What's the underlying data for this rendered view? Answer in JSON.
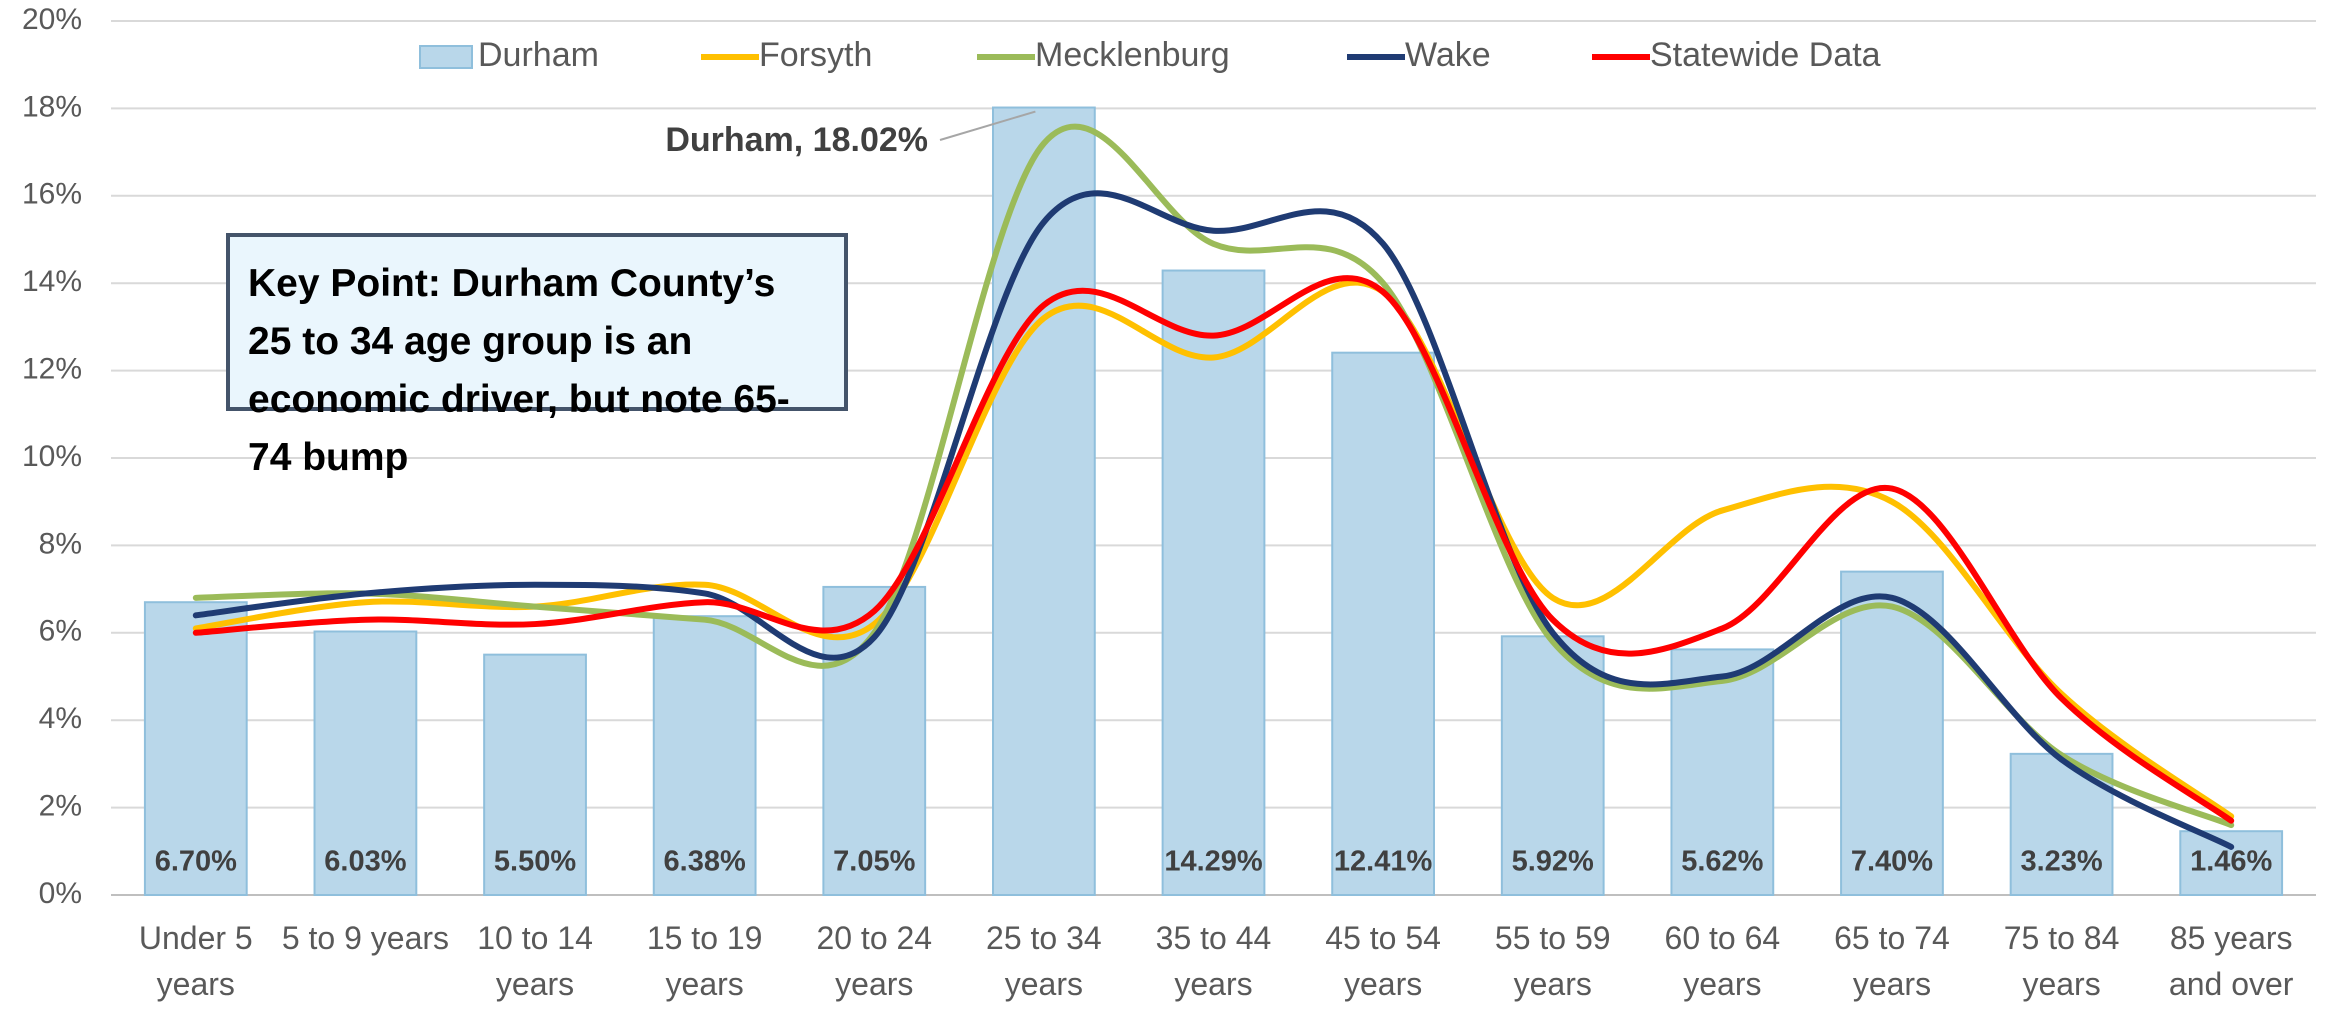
{
  "chart_data": {
    "type": "bar",
    "categories": [
      "Under 5 years",
      "5 to 9 years",
      "10 to 14 years",
      "15 to 19 years",
      "20 to 24 years",
      "25 to 34 years",
      "35 to 44 years",
      "45 to 54 years",
      "55 to 59 years",
      "60 to 64 years",
      "65 to 74 years",
      "75 to 84 years",
      "85 years and over"
    ],
    "series": [
      {
        "name": "Durham",
        "type": "bar",
        "color": "#b9d7ea",
        "values": [
          6.7,
          6.03,
          5.5,
          6.38,
          7.05,
          18.02,
          14.29,
          12.41,
          5.92,
          5.62,
          7.4,
          3.23,
          1.46
        ],
        "value_labels": [
          "6.70%",
          "6.03%",
          "5.50%",
          "6.38%",
          "7.05%",
          null,
          "14.29%",
          "12.41%",
          "5.92%",
          "5.62%",
          "7.40%",
          "3.23%",
          "1.46%"
        ]
      },
      {
        "name": "Forsyth",
        "type": "line",
        "color": "#ffc000",
        "values": [
          6.1,
          6.7,
          6.6,
          7.1,
          6.2,
          13.2,
          12.3,
          13.8,
          6.8,
          8.8,
          9.0,
          4.6,
          1.8
        ]
      },
      {
        "name": "Mecklenburg",
        "type": "line",
        "color": "#9bbb59",
        "values": [
          6.8,
          6.9,
          6.6,
          6.3,
          6.0,
          17.2,
          14.9,
          14.0,
          5.8,
          4.9,
          6.6,
          3.2,
          1.6
        ]
      },
      {
        "name": "Wake",
        "type": "line",
        "color": "#1f3b73",
        "values": [
          6.4,
          6.9,
          7.1,
          6.9,
          5.9,
          15.4,
          15.2,
          14.9,
          6.0,
          5.0,
          6.8,
          3.1,
          1.1
        ]
      },
      {
        "name": "Statewide Data",
        "type": "line",
        "color": "#ff0000",
        "values": [
          6.0,
          6.3,
          6.2,
          6.7,
          6.5,
          13.5,
          12.8,
          13.8,
          6.3,
          6.1,
          9.3,
          4.5,
          1.7
        ]
      }
    ],
    "ylim": [
      0,
      20
    ],
    "yticks": [
      {
        "value": 0,
        "label": "0%"
      },
      {
        "value": 2,
        "label": "2%"
      },
      {
        "value": 4,
        "label": "4%"
      },
      {
        "value": 6,
        "label": "6%"
      },
      {
        "value": 8,
        "label": "8%"
      },
      {
        "value": 10,
        "label": "10%"
      },
      {
        "value": 12,
        "label": "12%"
      },
      {
        "value": 14,
        "label": "14%"
      },
      {
        "value": 16,
        "label": "16%"
      },
      {
        "value": 18,
        "label": "18%"
      },
      {
        "value": 20,
        "label": "20%"
      }
    ],
    "grid": true,
    "annotations": [
      "Durham, 18.02%",
      "Key Point: Durham County’s 25 to 34 age group is an economic driver, but note 65-74 bump"
    ]
  }
}
